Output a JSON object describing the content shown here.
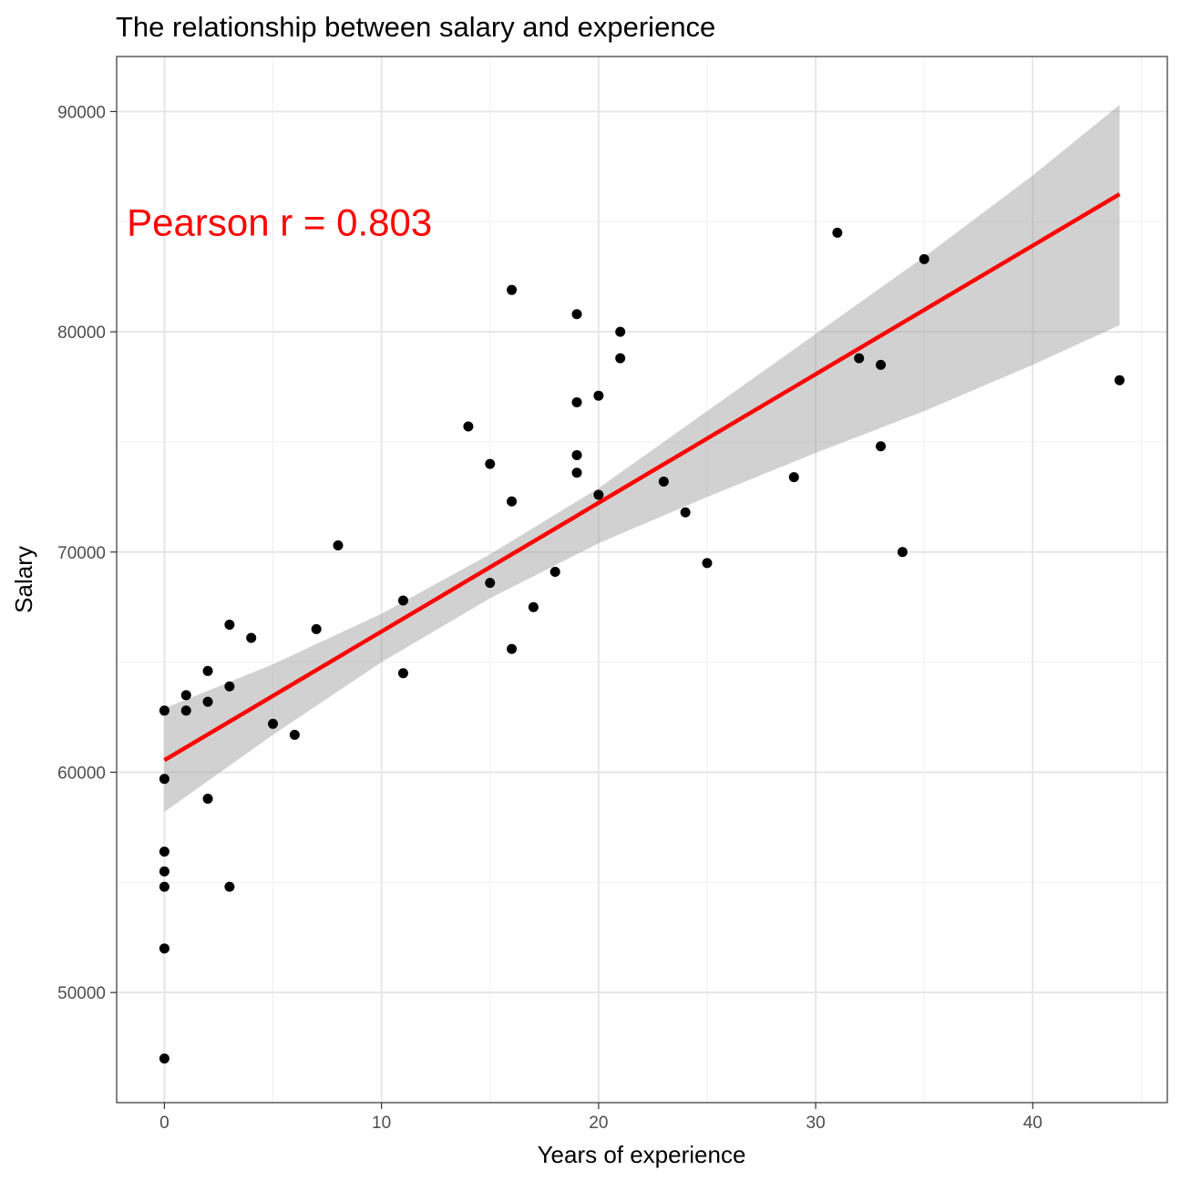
{
  "chart_data": {
    "type": "scatter",
    "title": "The relationship between salary and experience",
    "xlabel": "Years of experience",
    "ylabel": "Salary",
    "xlim": [
      -2.2,
      46.2
    ],
    "ylim": [
      45000,
      92500
    ],
    "x_ticks": [
      0,
      10,
      20,
      30,
      40
    ],
    "y_ticks": [
      50000,
      60000,
      70000,
      80000,
      90000
    ],
    "grid": true,
    "points": [
      {
        "x": 0,
        "y": 47000
      },
      {
        "x": 0,
        "y": 52000
      },
      {
        "x": 0,
        "y": 54800
      },
      {
        "x": 0,
        "y": 55500
      },
      {
        "x": 0,
        "y": 56400
      },
      {
        "x": 0,
        "y": 59700
      },
      {
        "x": 0,
        "y": 62800
      },
      {
        "x": 1,
        "y": 62800
      },
      {
        "x": 1,
        "y": 63500
      },
      {
        "x": 2,
        "y": 58800
      },
      {
        "x": 2,
        "y": 63200
      },
      {
        "x": 2,
        "y": 64600
      },
      {
        "x": 3,
        "y": 54800
      },
      {
        "x": 3,
        "y": 63900
      },
      {
        "x": 3,
        "y": 66700
      },
      {
        "x": 4,
        "y": 66100
      },
      {
        "x": 5,
        "y": 62200
      },
      {
        "x": 6,
        "y": 61700
      },
      {
        "x": 7,
        "y": 66500
      },
      {
        "x": 8,
        "y": 70300
      },
      {
        "x": 11,
        "y": 64500
      },
      {
        "x": 11,
        "y": 67800
      },
      {
        "x": 14,
        "y": 75700
      },
      {
        "x": 15,
        "y": 68600
      },
      {
        "x": 15,
        "y": 74000
      },
      {
        "x": 16,
        "y": 65600
      },
      {
        "x": 16,
        "y": 72300
      },
      {
        "x": 16,
        "y": 81900
      },
      {
        "x": 17,
        "y": 67500
      },
      {
        "x": 18,
        "y": 69100
      },
      {
        "x": 19,
        "y": 73600
      },
      {
        "x": 19,
        "y": 74400
      },
      {
        "x": 19,
        "y": 76800
      },
      {
        "x": 19,
        "y": 80800
      },
      {
        "x": 20,
        "y": 72600
      },
      {
        "x": 20,
        "y": 77100
      },
      {
        "x": 21,
        "y": 78800
      },
      {
        "x": 21,
        "y": 80000
      },
      {
        "x": 23,
        "y": 73200
      },
      {
        "x": 24,
        "y": 71800
      },
      {
        "x": 25,
        "y": 69500
      },
      {
        "x": 29,
        "y": 73400
      },
      {
        "x": 31,
        "y": 84500
      },
      {
        "x": 32,
        "y": 78800
      },
      {
        "x": 33,
        "y": 74800
      },
      {
        "x": 33,
        "y": 78500
      },
      {
        "x": 34,
        "y": 70000
      },
      {
        "x": 35,
        "y": 83300
      },
      {
        "x": 44,
        "y": 77800
      }
    ],
    "fit_line": {
      "x": [
        0,
        44
      ],
      "y": [
        60550,
        86250
      ],
      "color": "#ff0000"
    },
    "confidence_band": {
      "x": [
        0,
        5,
        10,
        15,
        20,
        25,
        30,
        35,
        40,
        44
      ],
      "lower": [
        58200,
        61700,
        65000,
        67900,
        70400,
        72500,
        74500,
        76400,
        78500,
        80300
      ],
      "upper": [
        62900,
        64900,
        67200,
        69900,
        72900,
        76400,
        79900,
        83400,
        87100,
        90300
      ]
    },
    "annotation": {
      "text": "Pearson r =  0.803",
      "x": 5.3,
      "y": 85000,
      "color": "#ff0000"
    }
  },
  "colors": {
    "point": "#000000",
    "band": "#999999",
    "grid_major": "#e6e6e6",
    "grid_minor": "#f0f0f0",
    "panel_border": "#333333",
    "fit_line": "#ff0000",
    "annotation": "#ff0000"
  }
}
